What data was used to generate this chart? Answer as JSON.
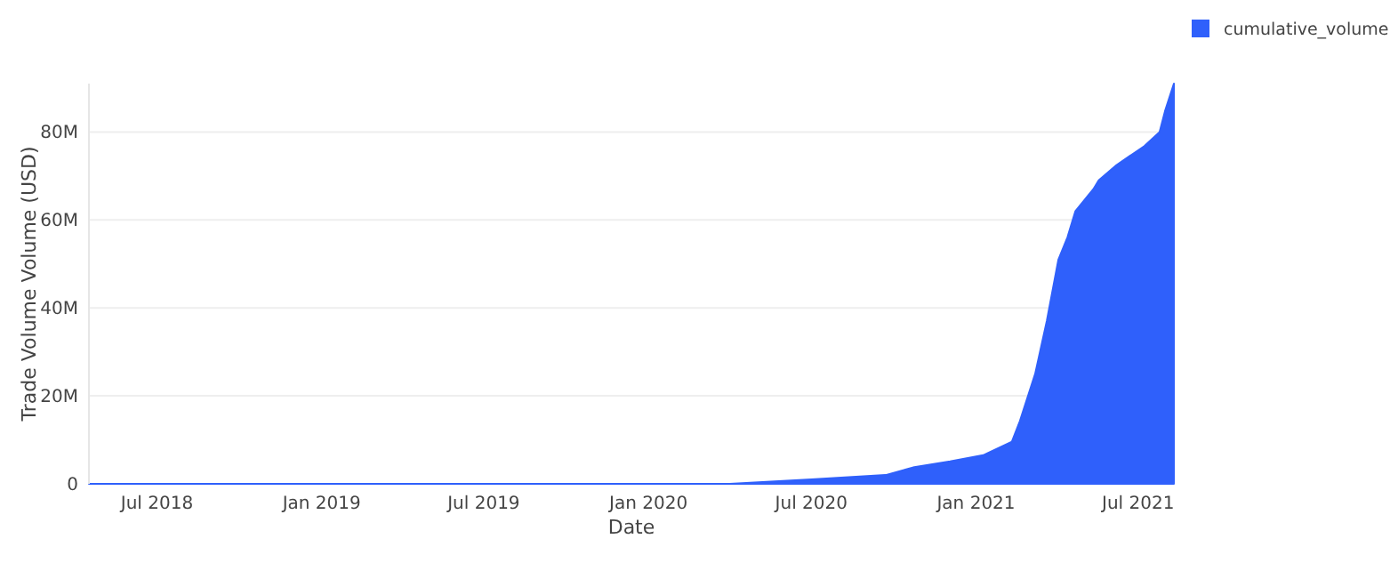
{
  "chart_data": {
    "type": "area",
    "xlabel": "Date",
    "ylabel": "Trade Volume Volume (USD)",
    "x": [
      "2018-04-16",
      "2018-10-01",
      "2019-04-01",
      "2019-10-01",
      "2020-01-15",
      "2020-04-01",
      "2020-07-01",
      "2020-09-22",
      "2020-10-24",
      "2020-12-03",
      "2021-01-09",
      "2021-02-10",
      "2021-02-19",
      "2021-03-08",
      "2021-03-21",
      "2021-04-03",
      "2021-04-13",
      "2021-04-22",
      "2021-05-12",
      "2021-05-18",
      "2021-06-07",
      "2021-07-08",
      "2021-07-25",
      "2021-07-31",
      "2021-08-10"
    ],
    "series": [
      {
        "name": "cumulative_volume",
        "color": "#2f60fb",
        "values": [
          0,
          0,
          0,
          0,
          0,
          0,
          1000000,
          2000000,
          3800000,
          5100000,
          6500000,
          9600000,
          14300000,
          25000000,
          37000000,
          51000000,
          56000000,
          62000000,
          67000000,
          69000000,
          72500000,
          76800000,
          80000000,
          84700000,
          91000000
        ]
      }
    ],
    "xlim": [
      "2018-04-16",
      "2021-08-10"
    ],
    "xticks": [
      {
        "value": "2018-07-01",
        "label": "Jul 2018"
      },
      {
        "value": "2019-01-01",
        "label": "Jan 2019"
      },
      {
        "value": "2019-07-01",
        "label": "Jul 2019"
      },
      {
        "value": "2020-01-01",
        "label": "Jan 2020"
      },
      {
        "value": "2020-07-01",
        "label": "Jul 2020"
      },
      {
        "value": "2021-01-01",
        "label": "Jan 2021"
      },
      {
        "value": "2021-07-01",
        "label": "Jul 2021"
      }
    ],
    "ylim": [
      0,
      91000000
    ],
    "yticks": [
      0,
      {
        "value": 20000000,
        "label": "20M"
      },
      {
        "value": 40000000,
        "label": "40M"
      },
      {
        "value": 60000000,
        "label": "60M"
      },
      {
        "value": 80000000,
        "label": "80M"
      }
    ],
    "grid": "y",
    "legend": "top right"
  }
}
